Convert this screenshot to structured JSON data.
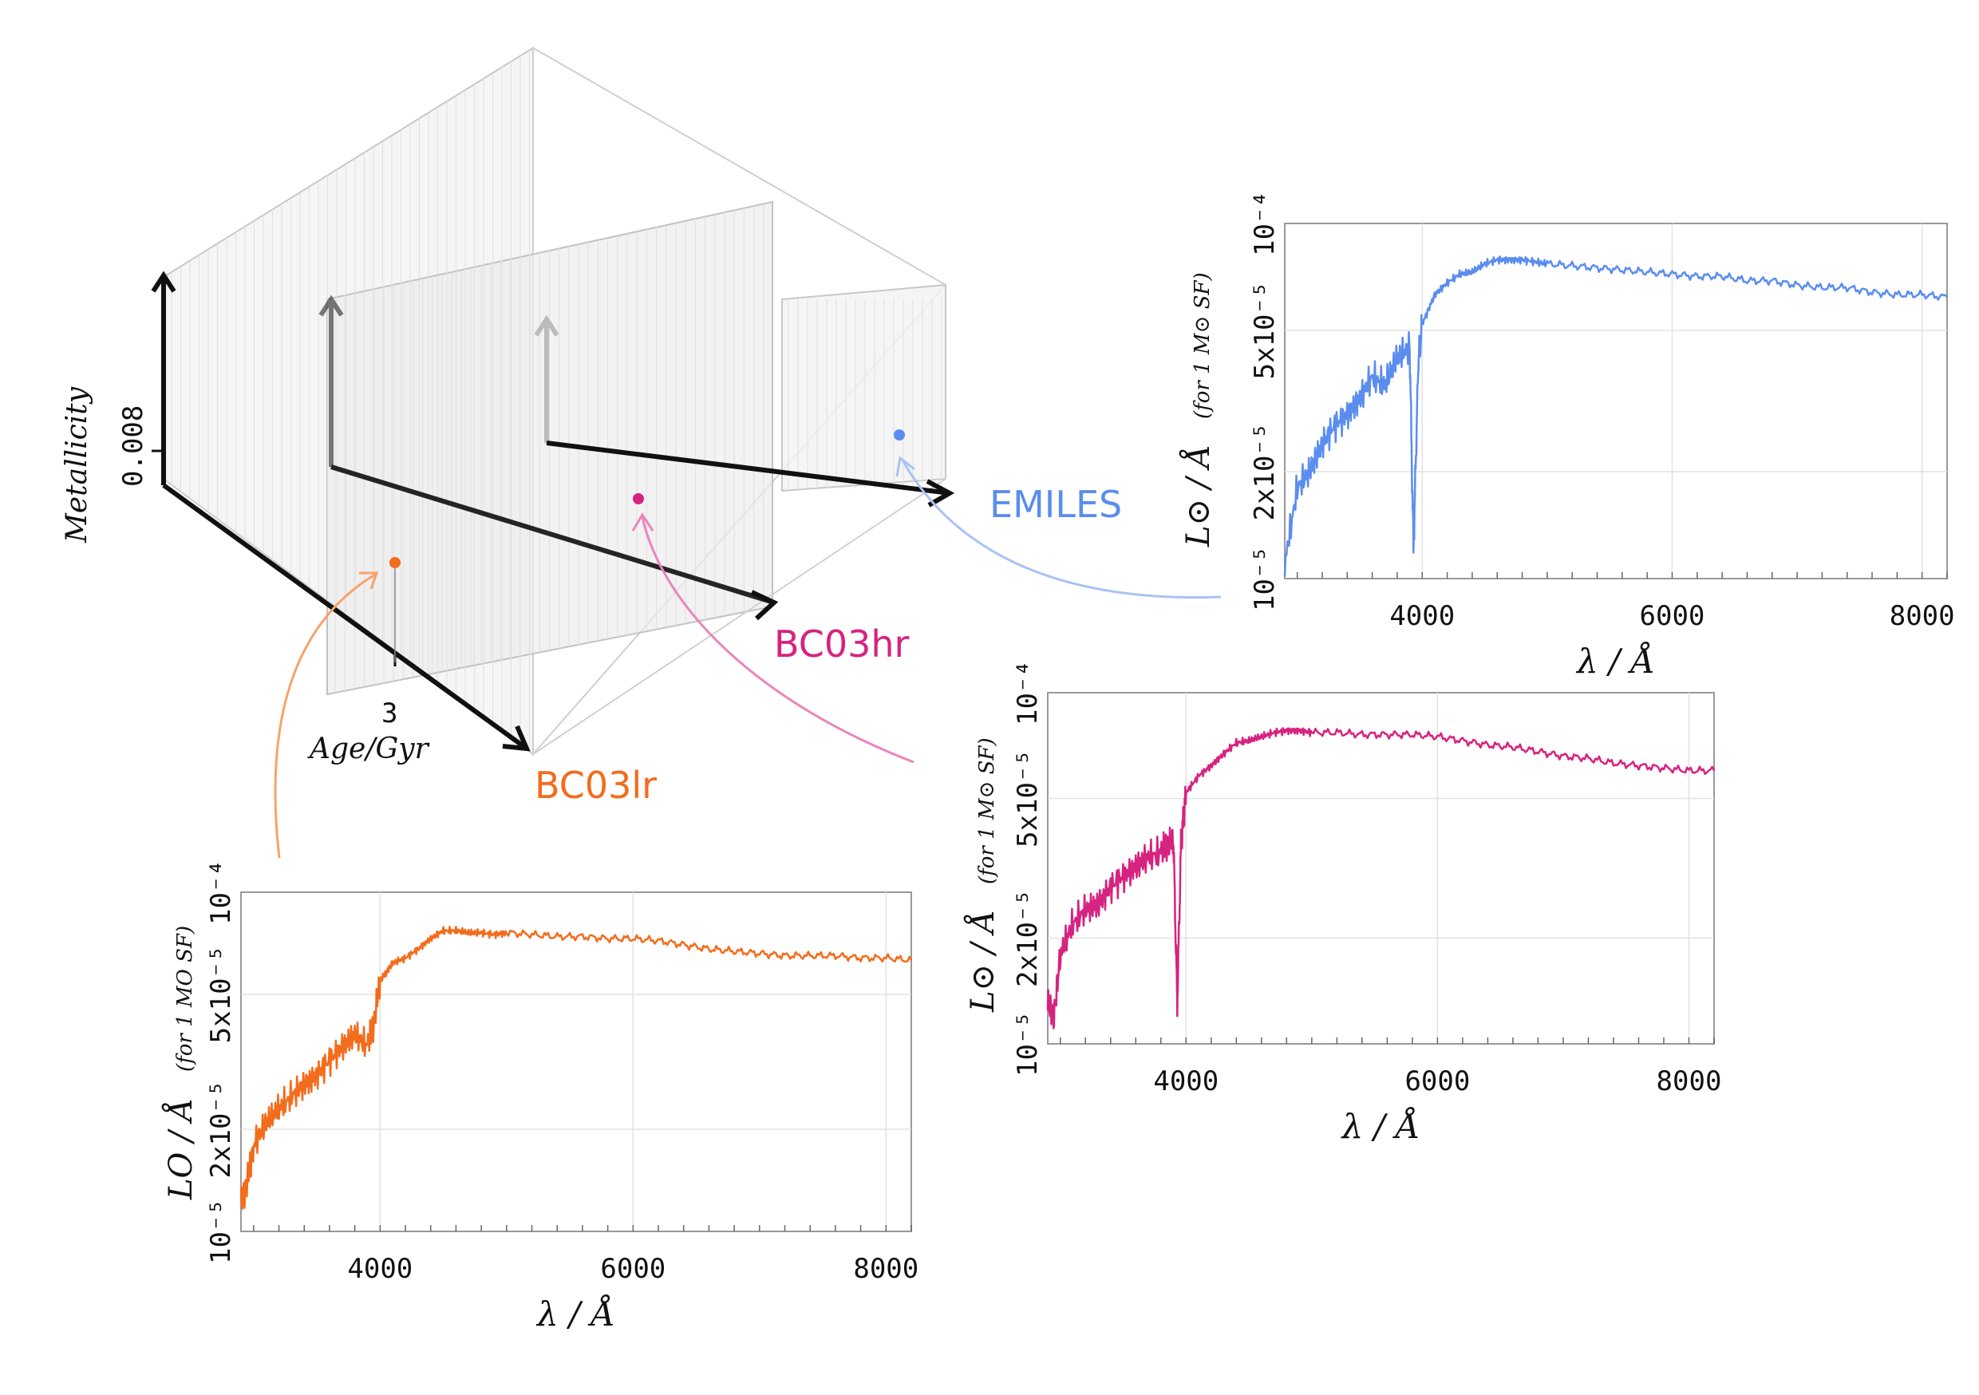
{
  "cube": {
    "metallicity_label": "Metallicity",
    "metallicity_tick": "0.008",
    "age_label": "Age/Gyr",
    "age_tick": "3",
    "libraries": [
      {
        "name": "BC03lr",
        "color": "#f36c1c"
      },
      {
        "name": "BC03hr",
        "color": "#d6237f"
      },
      {
        "name": "EMILES",
        "color": "#5b8def"
      }
    ]
  },
  "chart_data": [
    {
      "type": "line",
      "library": "EMILES",
      "color": "#5b8def",
      "xlabel": "λ / Å",
      "ylabel_main": "L⊙ / Å",
      "ylabel_note": "(for 1 M⊙ SF)",
      "x_ticks": [
        "4000",
        "6000",
        "8000"
      ],
      "y_ticks": [
        "10⁻⁵",
        "2x10⁻⁵",
        "5x10⁻⁵",
        "10⁻⁴"
      ],
      "xlim": [
        2900,
        8200
      ],
      "ylim": [
        1e-05,
        0.0001
      ],
      "yscale": "log",
      "grid": true,
      "x": [
        2900,
        3000,
        3100,
        3200,
        3300,
        3400,
        3500,
        3600,
        3700,
        3800,
        3900,
        3930,
        3970,
        4000,
        4100,
        4200,
        4300,
        4400,
        4500,
        4600,
        4700,
        4800,
        4900,
        5000,
        5200,
        5400,
        5600,
        5800,
        6000,
        6200,
        6400,
        6600,
        6800,
        7000,
        7200,
        7400,
        7600,
        7800,
        8000,
        8200
      ],
      "y": [
        1.1e-05,
        1.8e-05,
        2e-05,
        2.4e-05,
        2.7e-05,
        2.9e-05,
        3.2e-05,
        3.7e-05,
        3.5e-05,
        4.2e-05,
        4.5e-05,
        1.2e-05,
        4.2e-05,
        5.2e-05,
        6.3e-05,
        6.8e-05,
        7.2e-05,
        7.3e-05,
        7.7e-05,
        7.9e-05,
        7.9e-05,
        7.9e-05,
        7.8e-05,
        7.7e-05,
        7.6e-05,
        7.5e-05,
        7.4e-05,
        7.3e-05,
        7.2e-05,
        7.1e-05,
        7.1e-05,
        6.9e-05,
        6.9e-05,
        6.7e-05,
        6.6e-05,
        6.6e-05,
        6.4e-05,
        6.3e-05,
        6.3e-05,
        6.2e-05
      ]
    },
    {
      "type": "line",
      "library": "BC03hr",
      "color": "#d6237f",
      "xlabel": "λ / Å",
      "ylabel_main": "L⊙ / Å",
      "ylabel_note": "(for 1 M⊙ SF)",
      "x_ticks": [
        "4000",
        "6000",
        "8000"
      ],
      "y_ticks": [
        "10⁻⁵",
        "2x10⁻⁵",
        "5x10⁻⁵",
        "10⁻⁴"
      ],
      "xlim": [
        2900,
        8200
      ],
      "ylim": [
        1e-05,
        0.0001
      ],
      "yscale": "log",
      "grid": true,
      "x": [
        2900,
        2950,
        3000,
        3100,
        3200,
        3300,
        3400,
        3500,
        3600,
        3700,
        3800,
        3850,
        3900,
        3930,
        3960,
        4000,
        4100,
        4200,
        4300,
        4400,
        4500,
        4600,
        4700,
        4800,
        4900,
        5000,
        5200,
        5400,
        5600,
        5800,
        6000,
        6200,
        6400,
        6600,
        6800,
        7000,
        7200,
        7400,
        7600,
        7800,
        8000,
        8200
      ],
      "y": [
        1.3e-05,
        1.2e-05,
        1.8e-05,
        2.2e-05,
        2.4e-05,
        2.5e-05,
        2.8e-05,
        3e-05,
        3.2e-05,
        3.4e-05,
        3.5e-05,
        3.7e-05,
        3.8e-05,
        1.3e-05,
        3.7e-05,
        5.2e-05,
        5.8e-05,
        6.2e-05,
        6.7e-05,
        7.2e-05,
        7.3e-05,
        7.5e-05,
        7.7e-05,
        7.8e-05,
        7.8e-05,
        7.7e-05,
        7.7e-05,
        7.6e-05,
        7.6e-05,
        7.6e-05,
        7.5e-05,
        7.3e-05,
        7.1e-05,
        7e-05,
        6.8e-05,
        6.6e-05,
        6.5e-05,
        6.3e-05,
        6.2e-05,
        6.1e-05,
        6e-05,
        6e-05
      ]
    },
    {
      "type": "line",
      "library": "BC03lr",
      "color": "#f36c1c",
      "xlabel": "λ / Å",
      "ylabel_main": "LO / Å",
      "ylabel_note": "(for 1 MO SF)",
      "x_ticks": [
        "4000",
        "6000",
        "8000"
      ],
      "y_ticks": [
        "10⁻⁵",
        "2x10⁻⁵",
        "5x10⁻⁵",
        "10⁻⁴"
      ],
      "xlim": [
        2900,
        8200
      ],
      "ylim": [
        1e-05,
        0.0001
      ],
      "yscale": "log",
      "grid": true,
      "x": [
        2900,
        2950,
        3000,
        3100,
        3200,
        3300,
        3400,
        3500,
        3600,
        3700,
        3800,
        3900,
        3950,
        4000,
        4050,
        4100,
        4200,
        4300,
        4400,
        4500,
        4600,
        4700,
        4800,
        4900,
        5000,
        5200,
        5400,
        5600,
        5800,
        6000,
        6200,
        6400,
        6600,
        6800,
        7000,
        7200,
        7400,
        7600,
        7800,
        8000,
        8200
      ],
      "y": [
        1.2e-05,
        1.4e-05,
        1.8e-05,
        2.1e-05,
        2.3e-05,
        2.5e-05,
        2.7e-05,
        2.9e-05,
        3.2e-05,
        3.5e-05,
        3.8e-05,
        3.5e-05,
        4.1e-05,
        5.5e-05,
        5.8e-05,
        6.2e-05,
        6.4e-05,
        6.8e-05,
        7.3e-05,
        7.7e-05,
        7.7e-05,
        7.6e-05,
        7.6e-05,
        7.5e-05,
        7.6e-05,
        7.5e-05,
        7.4e-05,
        7.4e-05,
        7.3e-05,
        7.3e-05,
        7.2e-05,
        7e-05,
        6.8e-05,
        6.7e-05,
        6.6e-05,
        6.5e-05,
        6.5e-05,
        6.5e-05,
        6.4e-05,
        6.4e-05,
        6.3e-05
      ]
    }
  ]
}
